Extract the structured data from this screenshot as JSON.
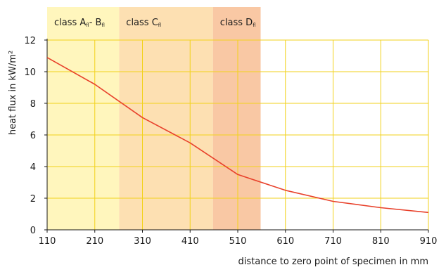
{
  "chart_data": {
    "type": "line",
    "title": "",
    "xlabel": "distance to zero point of specimen in mm",
    "ylabel": "heat flux in kW/m²",
    "xlim": [
      110,
      910
    ],
    "ylim": [
      0,
      12
    ],
    "xticks": [
      110,
      210,
      310,
      410,
      510,
      610,
      710,
      810,
      910
    ],
    "yticks": [
      0,
      2,
      4,
      6,
      8,
      10,
      12
    ],
    "grid": true,
    "line_color": "#e8412b",
    "grid_color": "#f2d21b",
    "bands": [
      {
        "label_main": "class A",
        "label_sub": "fl",
        "label_mid": "- B",
        "label_sub2": "fl",
        "x_start": 110,
        "x_end": 261,
        "color": "#fff6bd"
      },
      {
        "label_main": "class C",
        "label_sub": "fl",
        "label_mid": "",
        "label_sub2": "",
        "x_start": 261,
        "x_end": 458,
        "color": "#fde0b2"
      },
      {
        "label_main": "class D",
        "label_sub": "fl",
        "label_mid": "",
        "label_sub2": "",
        "x_start": 458,
        "x_end": 558,
        "color": "#f9c8a4"
      }
    ],
    "series": [
      {
        "x": [
          110,
          210,
          310,
          410,
          510,
          610,
          710,
          810,
          910
        ],
        "values": [
          10.9,
          9.2,
          7.1,
          5.5,
          3.5,
          2.5,
          1.8,
          1.4,
          1.1
        ]
      }
    ]
  }
}
